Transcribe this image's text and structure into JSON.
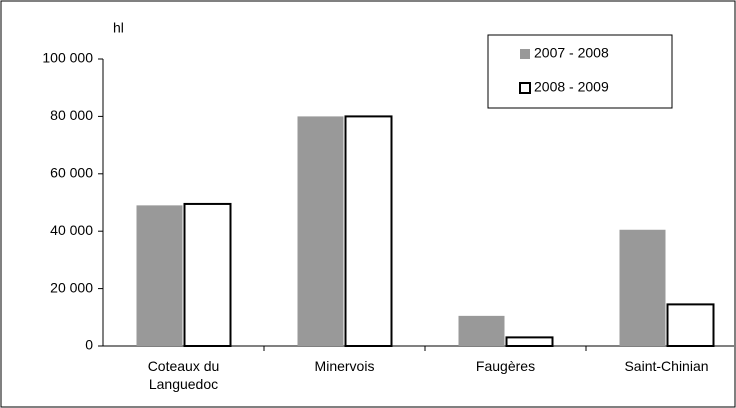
{
  "chart_data": {
    "type": "bar",
    "y_label": "hl",
    "categories": [
      "Coteaux du Languedoc",
      "Minervois",
      "Faugères",
      "Saint-Chinian"
    ],
    "series": [
      {
        "name": "2007 - 2008",
        "color": "#999999",
        "values": [
          49000,
          80000,
          10500,
          40500
        ]
      },
      {
        "name": "2008 - 2009",
        "color": "#ffffff",
        "values": [
          49500,
          80000,
          3000,
          14500
        ]
      }
    ],
    "ylim": [
      0,
      100000
    ],
    "yticks": [
      0,
      {
        "value": 20000,
        "label": "20 000"
      },
      {
        "value": 40000,
        "label": "40 000"
      },
      {
        "value": 60000,
        "label": "60 000"
      },
      {
        "value": 80000,
        "label": "80 000"
      },
      {
        "value": 100000,
        "label": "100 000"
      }
    ],
    "grid": false,
    "legend": "top-right"
  }
}
